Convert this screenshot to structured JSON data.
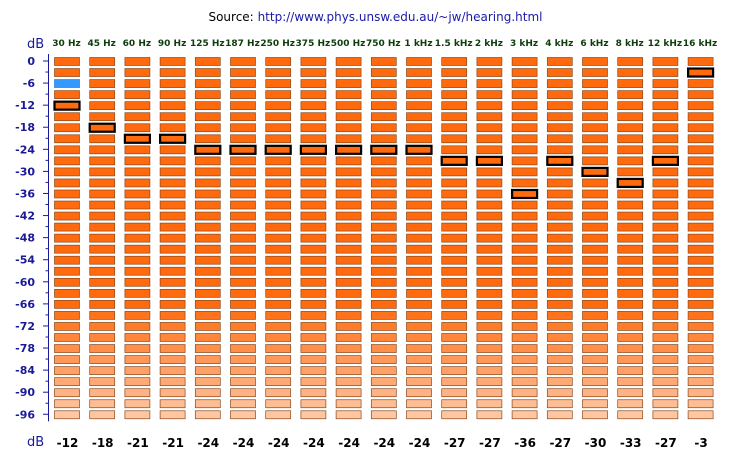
{
  "source": {
    "label": "Source:",
    "url": "http://www.phys.unsw.edu.au/~jw/hearing.html"
  },
  "chart_data": {
    "type": "heatmap",
    "axis_unit_label": "dB",
    "y_ticks": [
      0,
      -6,
      -12,
      -18,
      -24,
      -30,
      -36,
      -42,
      -48,
      -54,
      -60,
      -66,
      -72,
      -78,
      -84,
      -90,
      -96
    ],
    "y_range": [
      0,
      -99
    ],
    "level_step_db": 3,
    "frequencies": [
      "30 Hz",
      "45 Hz",
      "60 Hz",
      "90 Hz",
      "125 Hz",
      "187 Hz",
      "250 Hz",
      "375 Hz",
      "500 Hz",
      "750 Hz",
      "1 kHz",
      "1.5 kHz",
      "2 kHz",
      "3 kHz",
      "4 kHz",
      "6 kHz",
      "8 kHz",
      "12 kHz",
      "16 kHz"
    ],
    "thresholds_db": [
      -12,
      -18,
      -21,
      -21,
      -24,
      -24,
      -24,
      -24,
      -24,
      -24,
      -24,
      -27,
      -27,
      -36,
      -27,
      -30,
      -33,
      -27,
      -3
    ],
    "highlight_level": {
      "frequency": "30 Hz",
      "db": -6
    },
    "colors": {
      "cell_high": "#ff6a0e",
      "cell_low": "#ffcfb0",
      "cell_border": "#8a4a1e",
      "threshold_border": "#000000",
      "highlight": "#3399ff",
      "axis_text": "#1a1a99",
      "freq_text": "#0d3d0d",
      "value_text": "#000000"
    }
  }
}
